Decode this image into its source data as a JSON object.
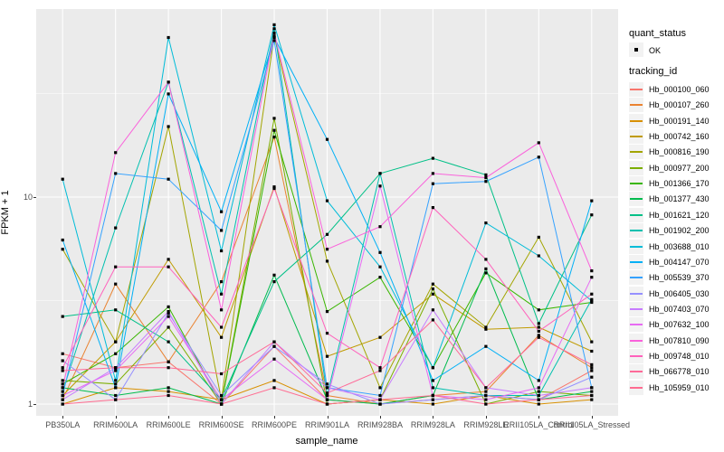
{
  "figure": {
    "panel_bg": "#EBEBEB",
    "grid_color": "#FFFFFF",
    "tick_color": "#333333",
    "tick_label_color": "#4D4D4D",
    "point_color": "#000000"
  },
  "axes": {
    "x_title": "sample_name",
    "y_title": "FPKM + 1",
    "y_tick_labels": [
      "10",
      "1"
    ]
  },
  "legend": {
    "quant_status_title": "quant_status",
    "quant_ok_label": "OK",
    "tracking_id_title": "tracking_id"
  },
  "chart_data": {
    "type": "line",
    "title": "",
    "xlabel": "sample_name",
    "ylabel": "FPKM + 1",
    "y_scale": "log10",
    "y_major_breaks": [
      1,
      10
    ],
    "y_minor_breaks": [
      3.162,
      31.623
    ],
    "ylim": [
      0.88,
      81
    ],
    "grid": true,
    "legend_position": "right",
    "point_marker": "black square (quant_status = OK)",
    "categories": [
      "PB350LA",
      "RRIM600LA",
      "RRIM600LE",
      "RRIM600SE",
      "RRIM600PE",
      "RRIM901LA",
      "RRIM928BA",
      "RRIM928LA",
      "RRIM928LE",
      "RRII105LA_Control",
      "RRII105LA_Stressed"
    ],
    "series": [
      {
        "name": "Hb_000100_060",
        "color": "#F8766D",
        "values": [
          1.75,
          1.5,
          1.6,
          1.0,
          1.9,
          1.05,
          1.0,
          1.05,
          1.1,
          1.05,
          1.45
        ]
      },
      {
        "name": "Hb_000107_260",
        "color": "#EA8331",
        "values": [
          1.05,
          3.8,
          1.6,
          3.9,
          19.5,
          1.1,
          1.0,
          1.1,
          1.15,
          2.15,
          1.5
        ]
      },
      {
        "name": "Hb_000191_140",
        "color": "#D89000",
        "values": [
          1.0,
          1.2,
          1.15,
          1.05,
          1.3,
          1.0,
          1.05,
          1.0,
          1.1,
          1.0,
          1.05
        ]
      },
      {
        "name": "Hb_000742_160",
        "color": "#C09B00",
        "values": [
          1.1,
          2.0,
          5.0,
          2.1,
          11.2,
          1.7,
          2.1,
          3.4,
          2.3,
          2.35,
          1.8
        ]
      },
      {
        "name": "Hb_000816_190",
        "color": "#A3A500",
        "values": [
          5.6,
          2.0,
          21.9,
          1.05,
          60.0,
          4.9,
          1.2,
          3.8,
          2.35,
          6.4,
          2.0
        ]
      },
      {
        "name": "Hb_000977_200",
        "color": "#7CAE00",
        "values": [
          1.3,
          1.25,
          2.35,
          1.0,
          24.0,
          1.0,
          1.05,
          3.6,
          1.0,
          1.15,
          1.1
        ]
      },
      {
        "name": "Hb_001366_170",
        "color": "#39B600",
        "values": [
          1.25,
          1.75,
          2.95,
          1.0,
          21.0,
          2.8,
          4.1,
          1.5,
          4.3,
          2.85,
          3.1
        ]
      },
      {
        "name": "Hb_001377_430",
        "color": "#00BB4E",
        "values": [
          1.2,
          1.1,
          1.2,
          1.0,
          4.2,
          1.05,
          1.0,
          1.1,
          4.5,
          1.05,
          1.15
        ]
      },
      {
        "name": "Hb_001621_120",
        "color": "#00C087",
        "values": [
          2.65,
          2.85,
          2.0,
          1.05,
          3.9,
          6.6,
          13.0,
          15.4,
          12.8,
          2.45,
          8.2
        ]
      },
      {
        "name": "Hb_001902_200",
        "color": "#00C0AF",
        "values": [
          1.15,
          7.1,
          35.9,
          3.4,
          65.0,
          1.1,
          13.0,
          1.2,
          1.1,
          1.1,
          3.2
        ]
      },
      {
        "name": "Hb_003688_010",
        "color": "#00BCD8",
        "values": [
          12.2,
          1.3,
          59.0,
          5.5,
          68.0,
          9.6,
          4.6,
          1.5,
          7.5,
          5.2,
          3.15
        ]
      },
      {
        "name": "Hb_004147_070",
        "color": "#00B0F6",
        "values": [
          6.2,
          1.2,
          31.5,
          8.5,
          59.0,
          19.0,
          5.4,
          1.3,
          1.9,
          1.3,
          9.6
        ]
      },
      {
        "name": "Hb_005539_370",
        "color": "#35A2FF",
        "values": [
          1.1,
          13.0,
          12.2,
          6.9,
          57.0,
          1.2,
          1.1,
          11.6,
          11.9,
          15.6,
          1.2
        ]
      },
      {
        "name": "Hb_006405_030",
        "color": "#9590FF",
        "values": [
          1.62,
          1.05,
          2.75,
          1.1,
          1.9,
          1.25,
          1.0,
          1.05,
          1.1,
          1.05,
          1.35
        ]
      },
      {
        "name": "Hb_007403_070",
        "color": "#C77CFF",
        "values": [
          1.05,
          1.5,
          2.8,
          1.0,
          2.0,
          1.2,
          1.05,
          2.85,
          1.2,
          1.1,
          1.2
        ]
      },
      {
        "name": "Hb_007632_100",
        "color": "#E76BF3",
        "values": [
          1.1,
          1.45,
          2.65,
          1.05,
          1.65,
          1.05,
          11.3,
          1.1,
          1.05,
          1.2,
          4.1
        ]
      },
      {
        "name": "Hb_007810_090",
        "color": "#FA62DB",
        "values": [
          1.2,
          16.4,
          35.9,
          2.85,
          62.0,
          5.6,
          7.2,
          13.0,
          12.4,
          18.3,
          4.4
        ]
      },
      {
        "name": "Hb_009748_010",
        "color": "#FF62BC",
        "values": [
          1.5,
          4.6,
          4.6,
          2.35,
          11.0,
          2.2,
          1.5,
          8.9,
          5.0,
          2.25,
          3.4
        ]
      },
      {
        "name": "Hb_066778_010",
        "color": "#FF6A98",
        "values": [
          1.45,
          1.5,
          1.5,
          1.4,
          2.0,
          1.13,
          1.45,
          2.55,
          1.2,
          2.1,
          1.55
        ]
      },
      {
        "name": "Hb_105959_010",
        "color": "#FF6C91",
        "values": [
          1.0,
          1.05,
          1.1,
          1.0,
          1.2,
          1.0,
          1.05,
          1.1,
          1.0,
          1.05,
          1.1
        ]
      }
    ]
  }
}
